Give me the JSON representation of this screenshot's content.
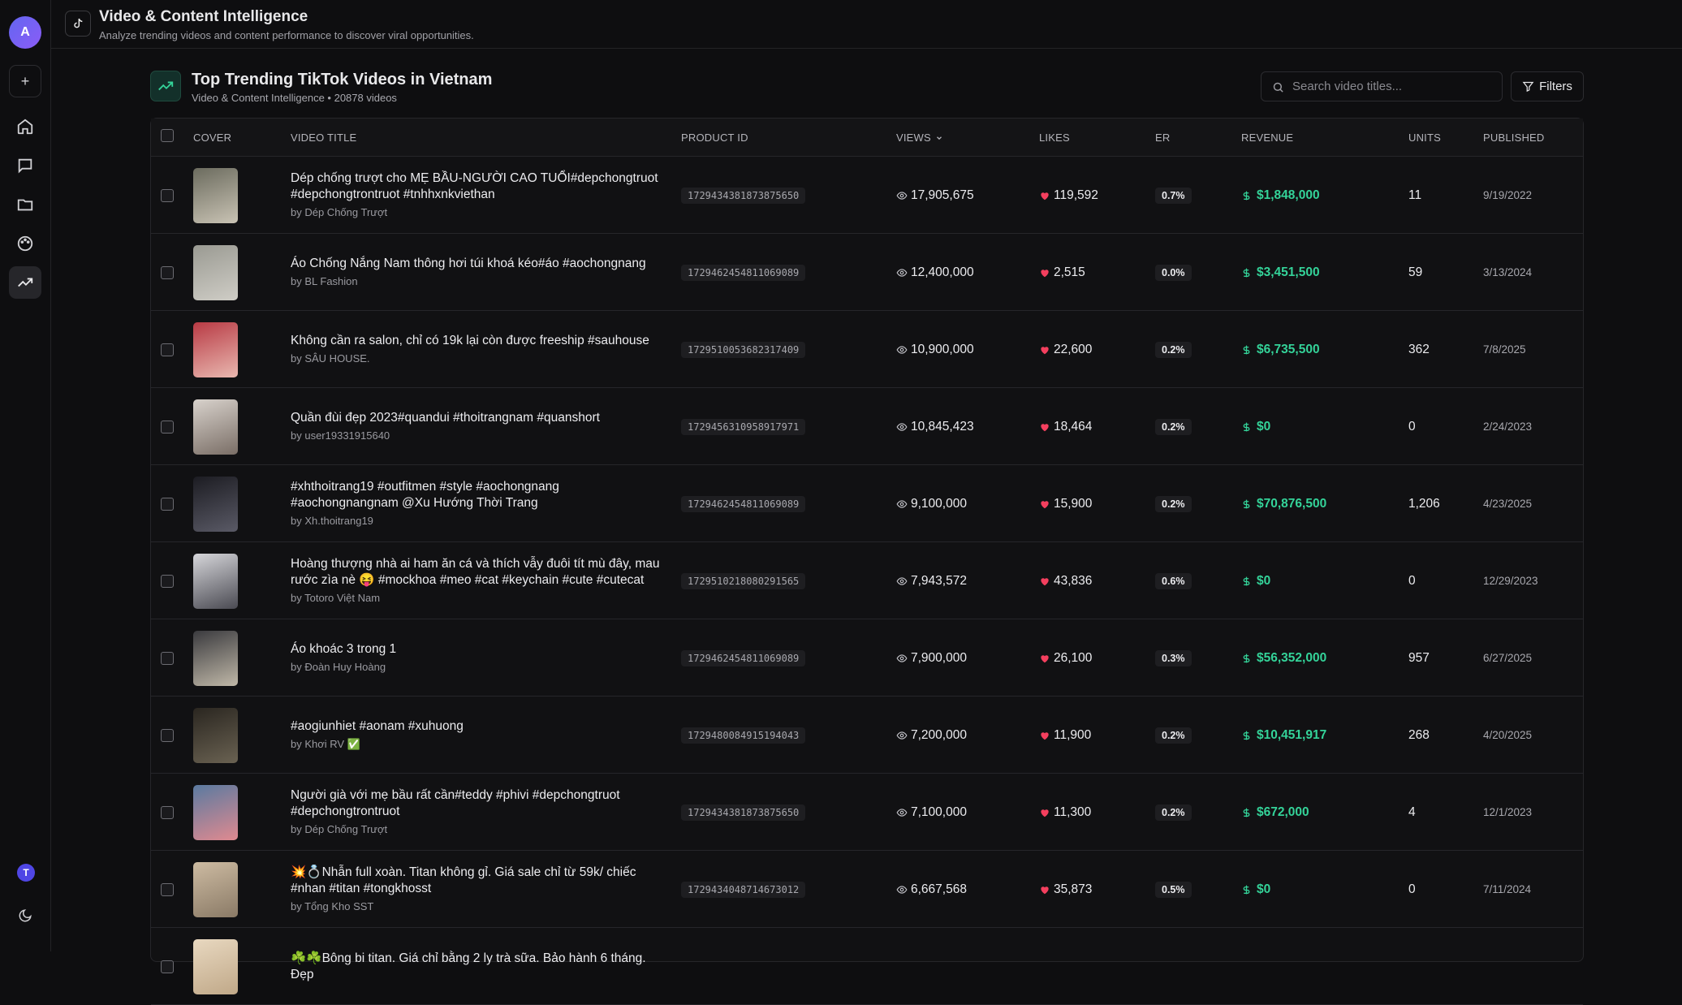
{
  "header": {
    "title": "Video & Content Intelligence",
    "subtitle": "Analyze trending videos and content performance to discover viral opportunities."
  },
  "sidebar": {
    "avatar": "A",
    "add": "+",
    "user": "T"
  },
  "section": {
    "title": "Top Trending TikTok Videos in Vietnam",
    "subtitle": "Video & Content Intelligence • 20878 videos",
    "search_placeholder": "Search video titles...",
    "filters": "Filters"
  },
  "table": {
    "columns": [
      "COVER",
      "VIDEO TITLE",
      "PRODUCT ID",
      "VIEWS",
      "LIKES",
      "ER",
      "REVENUE",
      "UNITS",
      "PUBLISHED"
    ],
    "rows": [
      {
        "title": "Dép chống trượt cho MẸ BẦU-NGƯỜI CAO TUỔI#depchongtruot #depchongtrontruot #tnhhxnkviethan",
        "author": "by Dép Chống Trượt",
        "product_id": "1729434381873875650",
        "views": "17,905,675",
        "likes": "119,592",
        "er": "0.7%",
        "revenue": "$1,848,000",
        "units": "11",
        "published": "9/19/2022"
      },
      {
        "title": "Áo Chống Nắng Nam thông hơi túi khoá kéo#áo #aochongnang",
        "author": "by BL Fashion",
        "product_id": "1729462454811069089",
        "views": "12,400,000",
        "likes": "2,515",
        "er": "0.0%",
        "revenue": "$3,451,500",
        "units": "59",
        "published": "3/13/2024"
      },
      {
        "title": "Không cần ra salon, chỉ có 19k lại còn được freeship #sauhouse",
        "author": "by SÂU HOUSE.",
        "product_id": "1729510053682317409",
        "views": "10,900,000",
        "likes": "22,600",
        "er": "0.2%",
        "revenue": "$6,735,500",
        "units": "362",
        "published": "7/8/2025"
      },
      {
        "title": "Quần đùi đẹp 2023#quandui #thoitrangnam #quanshort",
        "author": "by user19331915640",
        "product_id": "1729456310958917971",
        "views": "10,845,423",
        "likes": "18,464",
        "er": "0.2%",
        "revenue": "$0",
        "units": "0",
        "published": "2/24/2023"
      },
      {
        "title": "#xhthoitrang19 #outfitmen #style #aochongnang #aochongnangnam @Xu Hướng Thời Trang",
        "author": "by Xh.thoitrang19",
        "product_id": "1729462454811069089",
        "views": "9,100,000",
        "likes": "15,900",
        "er": "0.2%",
        "revenue": "$70,876,500",
        "units": "1,206",
        "published": "4/23/2025"
      },
      {
        "title": "Hoàng thượng nhà ai ham ăn cá và thích vẫy đuôi tít mù đây, mau rước zìa nè 😝 #mockhoa #meo #cat #keychain #cute #cutecat",
        "author": "by Totoro Việt Nam",
        "product_id": "1729510218080291565",
        "views": "7,943,572",
        "likes": "43,836",
        "er": "0.6%",
        "revenue": "$0",
        "units": "0",
        "published": "12/29/2023"
      },
      {
        "title": "Áo khoác 3 trong 1",
        "author": "by Đoàn Huy Hoàng",
        "product_id": "1729462454811069089",
        "views": "7,900,000",
        "likes": "26,100",
        "er": "0.3%",
        "revenue": "$56,352,000",
        "units": "957",
        "published": "6/27/2025"
      },
      {
        "title": "#aogiunhiet #aonam #xuhuong",
        "author": "by Khơi RV ✅",
        "product_id": "1729480084915194043",
        "views": "7,200,000",
        "likes": "11,900",
        "er": "0.2%",
        "revenue": "$10,451,917",
        "units": "268",
        "published": "4/20/2025"
      },
      {
        "title": "Người già với mẹ bầu rất cần#teddy #phivi #depchongtruot #depchongtrontruot",
        "author": "by Dép Chống Trượt",
        "product_id": "1729434381873875650",
        "views": "7,100,000",
        "likes": "11,300",
        "er": "0.2%",
        "revenue": "$672,000",
        "units": "4",
        "published": "12/1/2023"
      },
      {
        "title": "💥💍Nhẫn full xoàn. Titan không gỉ. Giá sale chỉ từ 59k/ chiếc #nhan #titan #tongkhosst",
        "author": "by Tổng Kho SST",
        "product_id": "1729434048714673012",
        "views": "6,667,568",
        "likes": "35,873",
        "er": "0.5%",
        "revenue": "$0",
        "units": "0",
        "published": "7/11/2024"
      },
      {
        "title": "☘️☘️Bông bi titan. Giá chỉ bằng 2 ly trà sữa. Bảo hành 6 tháng. Đẹp"
      }
    ]
  }
}
